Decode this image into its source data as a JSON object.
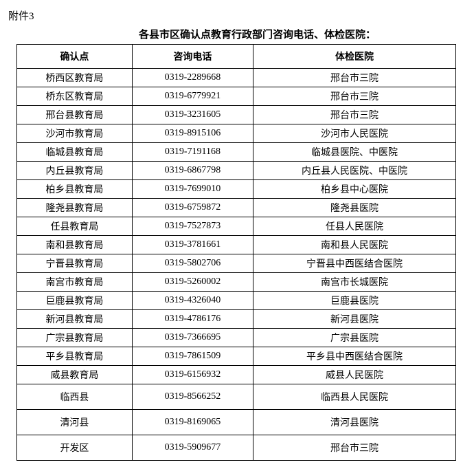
{
  "attachment_label": "附件3",
  "title": "各县市区确认点教育行政部门咨询电话、体检医院：",
  "columns": [
    "确认点",
    "咨询电话",
    "体检医院"
  ],
  "rows": [
    {
      "c0": "桥西区教育局",
      "c1": "0319-2289668",
      "c2": "邢台市三院",
      "tall": false
    },
    {
      "c0": "桥东区教育局",
      "c1": "0319-6779921",
      "c2": "邢台市三院",
      "tall": false
    },
    {
      "c0": "邢台县教育局",
      "c1": "0319-3231605",
      "c2": "邢台市三院",
      "tall": false
    },
    {
      "c0": "沙河市教育局",
      "c1": "0319-8915106",
      "c2": "沙河市人民医院",
      "tall": false
    },
    {
      "c0": "临城县教育局",
      "c1": "0319-7191168",
      "c2": "临城县医院、中医院",
      "tall": false
    },
    {
      "c0": "内丘县教育局",
      "c1": "0319-6867798",
      "c2": "内丘县人民医院、中医院",
      "tall": false
    },
    {
      "c0": "柏乡县教育局",
      "c1": "0319-7699010",
      "c2": "柏乡县中心医院",
      "tall": false
    },
    {
      "c0": "隆尧县教育局",
      "c1": "0319-6759872",
      "c2": "隆尧县医院",
      "tall": false
    },
    {
      "c0": "任县教育局",
      "c1": "0319-7527873",
      "c2": "任县人民医院",
      "tall": false
    },
    {
      "c0": "南和县教育局",
      "c1": "0319-3781661",
      "c2": "南和县人民医院",
      "tall": false
    },
    {
      "c0": "宁晋县教育局",
      "c1": "0319-5802706",
      "c2": "宁晋县中西医结合医院",
      "tall": false
    },
    {
      "c0": "南宫市教育局",
      "c1": "0319-5260002",
      "c2": "南宫市长城医院",
      "tall": false
    },
    {
      "c0": "巨鹿县教育局",
      "c1": "0319-4326040",
      "c2": "巨鹿县医院",
      "tall": false
    },
    {
      "c0": "新河县教育局",
      "c1": "0319-4786176",
      "c2": "新河县医院",
      "tall": false
    },
    {
      "c0": "广宗县教育局",
      "c1": "0319-7366695",
      "c2": "广宗县医院",
      "tall": false
    },
    {
      "c0": "平乡县教育局",
      "c1": "0319-7861509",
      "c2": "平乡县中西医结合医院",
      "tall": false
    },
    {
      "c0": "威县教育局",
      "c1": "0319-6156932",
      "c2": "威县人民医院",
      "tall": false
    },
    {
      "c0": "临西县",
      "c1": "0319-8566252",
      "c2": "临西县人民医院",
      "tall": true
    },
    {
      "c0": "清河县",
      "c1": "0319-8169065",
      "c2": "清河县医院",
      "tall": true
    },
    {
      "c0": "开发区",
      "c1": "0319-5909677",
      "c2": "邢台市三院",
      "tall": true
    }
  ]
}
